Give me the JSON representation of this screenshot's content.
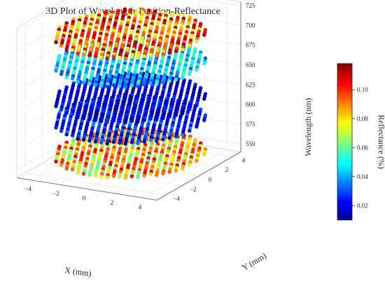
{
  "chart_data": {
    "type": "scatter",
    "projection": "3d",
    "title": "3D Plot of Wavelength-Position-Reflectance",
    "xlabel": "X (mm)",
    "ylabel": "Y (mm)",
    "zlabel": "Wavelength (nm)",
    "x_ticks": [
      "−4",
      "−2",
      "0",
      "2",
      "4"
    ],
    "y_ticks": [
      "−4",
      "−2",
      "0",
      "2",
      "4"
    ],
    "z_ticks": [
      "550",
      "575",
      "600",
      "625",
      "650",
      "675",
      "700",
      "725"
    ],
    "xlim": [
      -5,
      5
    ],
    "ylim": [
      -5,
      5
    ],
    "zlim": [
      540,
      730
    ],
    "grid": true,
    "colorbar": {
      "label": "Reflectance (%)",
      "colormap": "jet",
      "range": [
        0.01,
        0.118
      ],
      "ticks": [
        "0.02",
        "0.04",
        "0.06",
        "0.08",
        "0.10"
      ]
    },
    "layers": [
      {
        "wavelength": 555,
        "disk_radius": 4.7,
        "reflectance_min": 0.06,
        "reflectance_max": 0.11,
        "dominant_colors": [
          "#ffff66",
          "#ffb84d",
          "#ff6e3c",
          "#ff4d4d"
        ]
      },
      {
        "wavelength": 598,
        "disk_radius": 4.7,
        "reflectance_min": 0.01,
        "reflectance_max": 0.04,
        "dominant_colors": [
          "#2f5fe0",
          "#3d7cf4",
          "#3344c8"
        ]
      },
      {
        "wavelength": 625,
        "disk_radius": 4.7,
        "reflectance_min": 0.01,
        "reflectance_max": 0.03,
        "dominant_colors": [
          "#1a1a8c",
          "#2b2bb0",
          "#3d3dcc"
        ]
      },
      {
        "wavelength": 670,
        "disk_radius": 4.7,
        "reflectance_min": 0.03,
        "reflectance_max": 0.06,
        "dominant_colors": [
          "#4cc6f6",
          "#27a8ef",
          "#7fe0ff"
        ]
      },
      {
        "wavelength": 706,
        "disk_radius": 4.7,
        "reflectance_min": 0.07,
        "reflectance_max": 0.118,
        "dominant_colors": [
          "#ff3b1e",
          "#ff7a1c",
          "#ffd23c",
          "#c8e63c"
        ]
      }
    ]
  }
}
